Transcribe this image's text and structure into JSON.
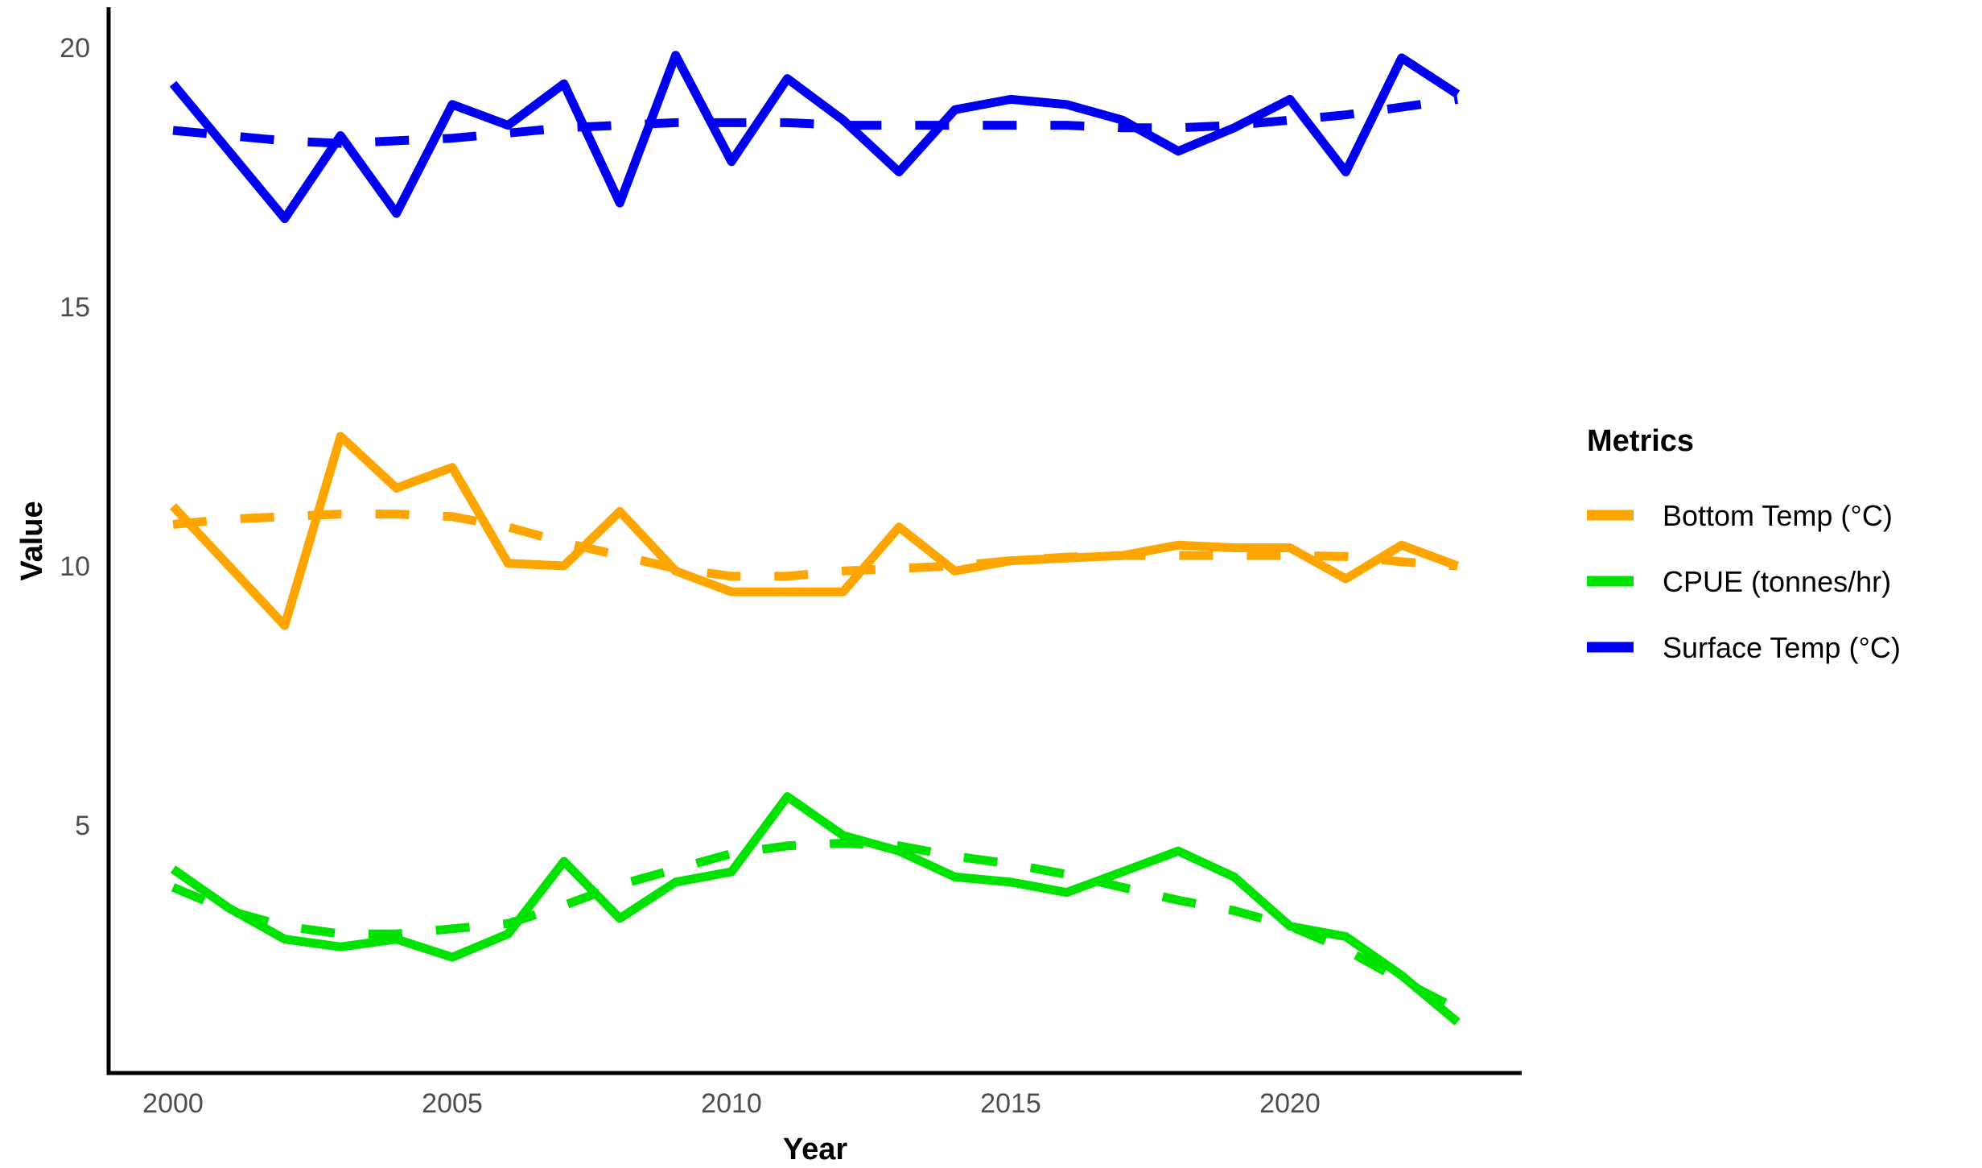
{
  "figure": {
    "background": "#ffffff",
    "axis_color": "#000000",
    "tick_text_color": "#4d4d4d"
  },
  "legend": {
    "title": "Metrics",
    "items": [
      {
        "label": "Bottom Temp (°C)",
        "color": "#FFA500"
      },
      {
        "label": "CPUE (tonnes/hr)",
        "color": "#00E300"
      },
      {
        "label": "Surface Temp (°C)",
        "color": "#0000F0"
      }
    ]
  },
  "chart_data": {
    "type": "line",
    "title": "",
    "xlabel": "Year",
    "ylabel": "Value",
    "grid": false,
    "legend_position": "right",
    "x": [
      2000,
      2001,
      2002,
      2003,
      2004,
      2005,
      2006,
      2007,
      2008,
      2009,
      2010,
      2011,
      2012,
      2013,
      2014,
      2015,
      2016,
      2017,
      2018,
      2019,
      2020,
      2021,
      2022,
      2023
    ],
    "x_ticks": [
      2000,
      2005,
      2010,
      2015,
      2020
    ],
    "y_ticks": [
      5,
      10,
      15,
      20
    ],
    "xlim": [
      1998.85,
      2024.15
    ],
    "ylim": [
      0.25,
      20.9
    ],
    "series": [
      {
        "name": "Bottom Temp (°C)",
        "color": "#FFA500",
        "style": "solid",
        "values": [
          11.15,
          10.0,
          8.85,
          12.5,
          11.5,
          11.9,
          10.05,
          10.0,
          11.05,
          9.9,
          9.5,
          9.5,
          9.5,
          10.75,
          9.9,
          10.1,
          10.15,
          10.2,
          10.4,
          10.35,
          10.35,
          9.75,
          10.4,
          10.0
        ]
      },
      {
        "name": "Bottom Temp (°C) trend",
        "color": "#FFA500",
        "style": "dashed",
        "values": [
          10.8,
          10.9,
          10.95,
          11.0,
          11.0,
          10.95,
          10.75,
          10.45,
          10.2,
          9.95,
          9.8,
          9.8,
          9.9,
          9.95,
          10.0,
          10.1,
          10.17,
          10.2,
          10.2,
          10.2,
          10.2,
          10.18,
          10.08,
          10.0
        ]
      },
      {
        "name": "CPUE (tonnes/hr)",
        "color": "#00E300",
        "style": "solid",
        "values": [
          4.15,
          3.4,
          2.8,
          2.65,
          2.8,
          2.45,
          2.9,
          4.3,
          3.2,
          3.9,
          4.1,
          5.55,
          4.8,
          4.5,
          4.0,
          3.9,
          3.7,
          4.1,
          4.5,
          4.0,
          3.05,
          2.85,
          2.1,
          1.2
        ]
      },
      {
        "name": "CPUE (tonnes/hr) trend",
        "color": "#00E300",
        "style": "dashed",
        "values": [
          3.8,
          3.35,
          3.05,
          2.9,
          2.9,
          3.0,
          3.1,
          3.45,
          3.85,
          4.15,
          4.45,
          4.6,
          4.65,
          4.6,
          4.4,
          4.25,
          4.05,
          3.8,
          3.55,
          3.35,
          3.05,
          2.6,
          2.0,
          1.45
        ]
      },
      {
        "name": "Surface Temp (°C)",
        "color": "#0000F0",
        "style": "solid",
        "values": [
          19.3,
          18.0,
          16.7,
          18.3,
          16.8,
          18.9,
          18.5,
          19.3,
          17.0,
          19.85,
          17.8,
          19.4,
          18.6,
          17.6,
          18.8,
          19.0,
          18.9,
          18.6,
          18.0,
          18.45,
          19.0,
          17.6,
          19.8,
          19.1
        ]
      },
      {
        "name": "Surface Temp (°C) trend",
        "color": "#0000F0",
        "style": "dashed",
        "values": [
          18.4,
          18.3,
          18.2,
          18.15,
          18.2,
          18.25,
          18.35,
          18.45,
          18.5,
          18.55,
          18.55,
          18.55,
          18.5,
          18.5,
          18.5,
          18.5,
          18.5,
          18.45,
          18.45,
          18.5,
          18.6,
          18.7,
          18.85,
          19.0
        ]
      }
    ]
  }
}
